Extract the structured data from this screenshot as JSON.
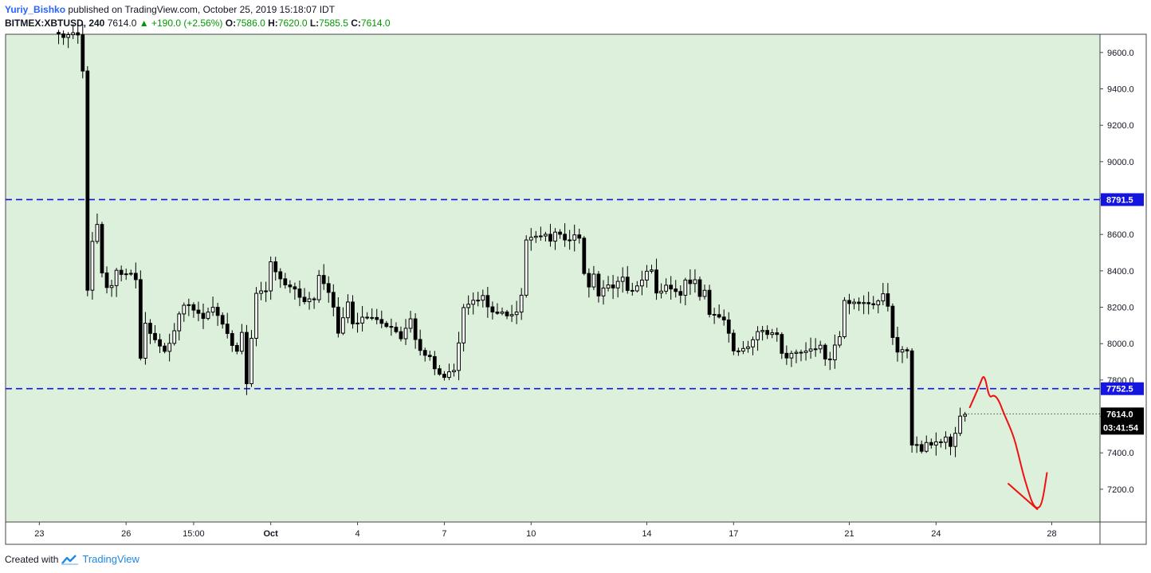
{
  "header": {
    "user": "Yuriy_Bishko",
    "published": "published on TradingView.com, October 25, 2019 15:18:07 IDT",
    "symbol": "BITMEX:XBTUSD, 240",
    "last": "7614.0",
    "change": "+190.0 (+2.56%)",
    "o_label": "O:",
    "o_val": "7586.0",
    "h_label": "H:",
    "h_val": "7620.0",
    "l_label": "L:",
    "l_val": "7585.5",
    "c_label": "C:",
    "c_val": "7614.0"
  },
  "footer": {
    "created": "Created with",
    "brand": "TradingView"
  },
  "colors": {
    "background": "#ddf0dc",
    "bull": "#ffffff",
    "bear": "#000000",
    "level": "#1515e0",
    "drawing": "#ee1111",
    "header_green": "#009900"
  },
  "chart_data": {
    "type": "candlestick",
    "title": "BITMEX:XBTUSD, 240",
    "y_range": [
      7020,
      9700
    ],
    "y_ticks": [
      7200,
      7400,
      7600,
      7800,
      8000,
      8200,
      8400,
      8600,
      8800,
      9000,
      9200,
      9400,
      9600
    ],
    "y_tick_labels": [
      "7200.0",
      "7400.0",
      "",
      "7800.0",
      "8000.0",
      "8200.0",
      "8400.0",
      "8600.0",
      "",
      "9000.0",
      "9200.0",
      "9400.0",
      "9600.0"
    ],
    "x_range": [
      0,
      227
    ],
    "x_ticks": [
      {
        "x": 7,
        "label": "23"
      },
      {
        "x": 25,
        "label": "26"
      },
      {
        "x": 39,
        "label": "15:00"
      },
      {
        "x": 55,
        "label": "Oct"
      },
      {
        "x": 73,
        "label": "4"
      },
      {
        "x": 91,
        "label": "7"
      },
      {
        "x": 109,
        "label": "10"
      },
      {
        "x": 133,
        "label": "14"
      },
      {
        "x": 151,
        "label": "17"
      },
      {
        "x": 175,
        "label": "21"
      },
      {
        "x": 193,
        "label": "24"
      },
      {
        "x": 217,
        "label": "28"
      }
    ],
    "levels": [
      {
        "price": 8791.5,
        "label": "8791.5"
      },
      {
        "price": 7752.5,
        "label": "7752.5"
      }
    ],
    "last_price": {
      "price": 7614.0,
      "label": "7614.0",
      "countdown": "03:41:54"
    },
    "anchor_points": [
      [
        11,
        9700
      ],
      [
        12,
        9680
      ],
      [
        13,
        9700
      ],
      [
        14,
        9700
      ],
      [
        15,
        9700
      ],
      [
        16,
        9500
      ],
      [
        17,
        8300
      ],
      [
        18,
        8550
      ],
      [
        19,
        8650
      ],
      [
        20,
        8380
      ],
      [
        21,
        8300
      ],
      [
        22,
        8330
      ],
      [
        23,
        8400
      ],
      [
        24,
        8370
      ],
      [
        25,
        8390
      ],
      [
        26,
        8380
      ],
      [
        27,
        8360
      ],
      [
        28,
        7910
      ],
      [
        29,
        8120
      ],
      [
        30,
        8060
      ],
      [
        31,
        8020
      ],
      [
        33,
        7960
      ],
      [
        34,
        8000
      ],
      [
        36,
        8160
      ],
      [
        37,
        8200
      ],
      [
        38,
        8220
      ],
      [
        39,
        8190
      ],
      [
        41,
        8130
      ],
      [
        43,
        8210
      ],
      [
        45,
        8100
      ],
      [
        47,
        8000
      ],
      [
        48,
        7960
      ],
      [
        49,
        8050
      ],
      [
        50,
        7770
      ],
      [
        51,
        8030
      ],
      [
        52,
        8280
      ],
      [
        53,
        8290
      ],
      [
        54,
        8300
      ],
      [
        55,
        8440
      ],
      [
        56,
        8400
      ],
      [
        58,
        8320
      ],
      [
        60,
        8300
      ],
      [
        62,
        8220
      ],
      [
        64,
        8250
      ],
      [
        65,
        8370
      ],
      [
        66,
        8340
      ],
      [
        68,
        8200
      ],
      [
        69,
        8060
      ],
      [
        70,
        8140
      ],
      [
        71,
        8230
      ],
      [
        72,
        8110
      ],
      [
        74,
        8140
      ],
      [
        76,
        8150
      ],
      [
        78,
        8100
      ],
      [
        80,
        8100
      ],
      [
        82,
        8030
      ],
      [
        84,
        8130
      ],
      [
        85,
        8020
      ],
      [
        86,
        7960
      ],
      [
        88,
        7930
      ],
      [
        89,
        7860
      ],
      [
        91,
        7820
      ],
      [
        93,
        7850
      ],
      [
        94,
        8000
      ],
      [
        95,
        8190
      ],
      [
        96,
        8220
      ],
      [
        98,
        8240
      ],
      [
        99,
        8270
      ],
      [
        100,
        8200
      ],
      [
        102,
        8170
      ],
      [
        104,
        8160
      ],
      [
        105,
        8150
      ],
      [
        106,
        8170
      ],
      [
        107,
        8260
      ],
      [
        108,
        8580
      ],
      [
        110,
        8580
      ],
      [
        111,
        8590
      ],
      [
        112,
        8600
      ],
      [
        113,
        8560
      ],
      [
        114,
        8610
      ],
      [
        115,
        8590
      ],
      [
        116,
        8560
      ],
      [
        117,
        8580
      ],
      [
        118,
        8590
      ],
      [
        119,
        8570
      ],
      [
        120,
        8390
      ],
      [
        121,
        8320
      ],
      [
        122,
        8370
      ],
      [
        123,
        8260
      ],
      [
        124,
        8300
      ],
      [
        125,
        8320
      ],
      [
        126,
        8300
      ],
      [
        127,
        8340
      ],
      [
        128,
        8370
      ],
      [
        129,
        8300
      ],
      [
        130,
        8300
      ],
      [
        131,
        8320
      ],
      [
        132,
        8340
      ],
      [
        133,
        8400
      ],
      [
        134,
        8410
      ],
      [
        135,
        8290
      ],
      [
        136,
        8300
      ],
      [
        137,
        8320
      ],
      [
        138,
        8300
      ],
      [
        139,
        8290
      ],
      [
        140,
        8270
      ],
      [
        141,
        8360
      ],
      [
        142,
        8340
      ],
      [
        143,
        8340
      ],
      [
        144,
        8270
      ],
      [
        145,
        8300
      ],
      [
        146,
        8160
      ],
      [
        147,
        8160
      ],
      [
        148,
        8150
      ],
      [
        149,
        8140
      ],
      [
        150,
        8060
      ],
      [
        151,
        7950
      ],
      [
        152,
        7960
      ],
      [
        153,
        7980
      ],
      [
        154,
        7990
      ],
      [
        155,
        8010
      ],
      [
        156,
        8070
      ],
      [
        157,
        8080
      ],
      [
        158,
        8050
      ],
      [
        159,
        8070
      ],
      [
        160,
        8050
      ],
      [
        161,
        7950
      ],
      [
        162,
        7930
      ],
      [
        163,
        7940
      ],
      [
        164,
        7960
      ],
      [
        165,
        7950
      ],
      [
        166,
        7950
      ],
      [
        167,
        7960
      ],
      [
        168,
        7980
      ],
      [
        169,
        7980
      ],
      [
        170,
        7910
      ],
      [
        171,
        7920
      ],
      [
        172,
        8000
      ],
      [
        173,
        8040
      ],
      [
        174,
        8230
      ],
      [
        175,
        8230
      ],
      [
        176,
        8220
      ],
      [
        177,
        8210
      ],
      [
        178,
        8230
      ],
      [
        179,
        8220
      ],
      [
        180,
        8220
      ],
      [
        181,
        8240
      ],
      [
        182,
        8280
      ],
      [
        183,
        8200
      ],
      [
        184,
        8030
      ],
      [
        185,
        7960
      ],
      [
        186,
        7960
      ],
      [
        187,
        7960
      ],
      [
        188,
        7440
      ],
      [
        189,
        7440
      ],
      [
        190,
        7420
      ],
      [
        191,
        7450
      ],
      [
        192,
        7440
      ],
      [
        193,
        7450
      ],
      [
        194,
        7450
      ],
      [
        195,
        7480
      ],
      [
        196,
        7430
      ],
      [
        197,
        7500
      ],
      [
        198,
        7600
      ],
      [
        199,
        7614
      ]
    ],
    "drawing": {
      "type": "freehand",
      "color": "#ee1111",
      "points": [
        [
          200,
          7650
        ],
        [
          202,
          7770
        ],
        [
          203,
          7840
        ],
        [
          204,
          7700
        ],
        [
          205,
          7720
        ],
        [
          206,
          7690
        ],
        [
          207,
          7620
        ],
        [
          209,
          7500
        ],
        [
          210,
          7400
        ],
        [
          211,
          7290
        ],
        [
          212,
          7200
        ],
        [
          213,
          7120
        ],
        [
          214,
          7090
        ],
        [
          215,
          7120
        ],
        [
          216,
          7290
        ]
      ],
      "arrowhead": [
        [
          208,
          7230
        ],
        [
          214,
          7090
        ]
      ]
    }
  }
}
